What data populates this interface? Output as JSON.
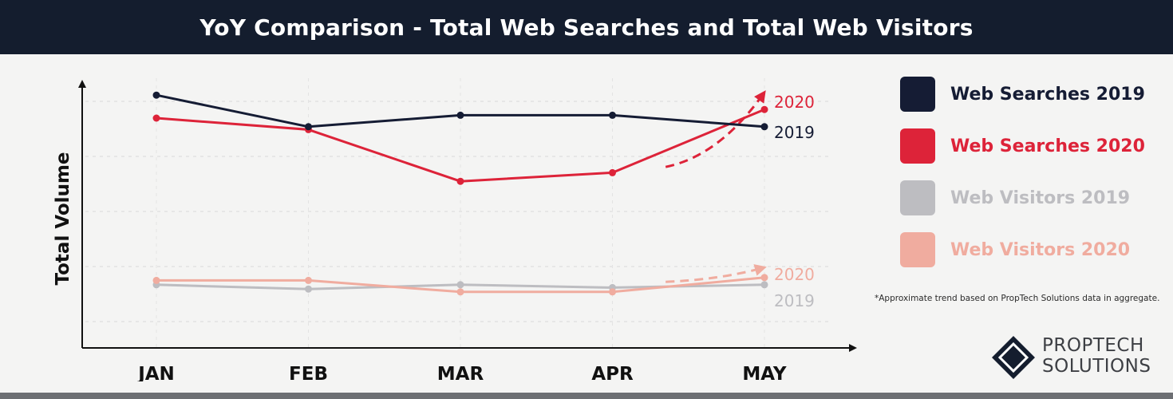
{
  "header": {
    "title": "YoY Comparison - Total Web Searches and Total Web Visitors"
  },
  "colors": {
    "searches_2019": "#151c34",
    "searches_2020": "#dd2339",
    "visitors_2019": "#bdbdc1",
    "visitors_2020": "#f0ac9f",
    "header_bg": "#141d2e"
  },
  "chart_data": {
    "type": "line",
    "ylabel": "Total Volume",
    "xlabel": "",
    "categories": [
      "JAN",
      "FEB",
      "MAR",
      "APR",
      "MAY"
    ],
    "ylim": [
      0,
      100
    ],
    "yaxis_tick_labels": false,
    "grid": "horizontal dashed",
    "series": [
      {
        "name": "Web Searches 2019",
        "color": "#151c34",
        "values": [
          88,
          77,
          81,
          81,
          77
        ],
        "end_label": "2019"
      },
      {
        "name": "Web Searches 2020",
        "color": "#dd2339",
        "values": [
          80,
          76,
          58,
          61,
          83
        ],
        "end_label": "2020"
      },
      {
        "name": "Web Visitors 2019",
        "color": "#bdbdc1",
        "values": [
          22,
          20.5,
          22,
          21,
          22
        ],
        "end_label": "2019"
      },
      {
        "name": "Web Visitors 2020",
        "color": "#f0ac9f",
        "values": [
          23.5,
          23.5,
          19.5,
          19.5,
          24.5
        ],
        "end_label": "2020"
      }
    ],
    "trend_arrows": [
      {
        "color": "#dd2339",
        "from_x": 3.35,
        "from_y": 63,
        "to_x": 4.0,
        "to_y": 89
      },
      {
        "color": "#f0ac9f",
        "from_x": 3.35,
        "from_y": 23,
        "to_x": 4.0,
        "to_y": 28
      }
    ],
    "legend_position": "right"
  },
  "legend": {
    "items": [
      {
        "label": "Web Searches 2019",
        "color": "#151c34"
      },
      {
        "label": "Web Searches 2020",
        "color": "#dd2339"
      },
      {
        "label": "Web Visitors 2019",
        "color": "#bdbdc1"
      },
      {
        "label": "Web Visitors 2020",
        "color": "#f0ac9f"
      }
    ]
  },
  "footnote": "*Approximate trend based on PropTech Solutions data in aggregate.",
  "logo": {
    "line1": "PROPTECH",
    "line2": "SOLUTIONS"
  }
}
